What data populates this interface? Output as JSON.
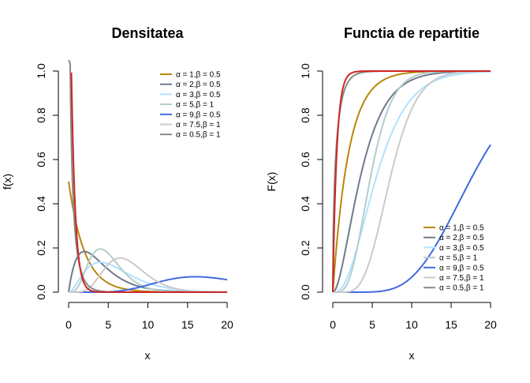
{
  "chart_data": [
    {
      "type": "line",
      "title": "Densitatea",
      "xlabel": "x",
      "ylabel": "f(x)",
      "xlim": [
        0,
        20
      ],
      "ylim": [
        0,
        1.0
      ],
      "xticks": [
        "0",
        "5",
        "10",
        "15",
        "20"
      ],
      "yticks": [
        "0.0",
        "0.2",
        "0.4",
        "0.6",
        "0.8",
        "1.0"
      ],
      "function": "gamma density",
      "legend_position": "top-right",
      "legend_box": false,
      "grid": false,
      "series": [
        {
          "name": "α = 1,β = 0.5",
          "alpha": 1,
          "beta": 0.5,
          "color": "#B8860B"
        },
        {
          "name": "α = 2,β = 0.5",
          "alpha": 2,
          "beta": 0.5,
          "color": "#6E7B8B"
        },
        {
          "name": "α = 3,β = 0.5",
          "alpha": 3,
          "beta": 0.5,
          "color": "#B0E2FF"
        },
        {
          "name": "α = 5,β = 1",
          "alpha": 5,
          "beta": 1,
          "color": "#B4CDCD"
        },
        {
          "name": "α = 9,β = 0.5",
          "alpha": 9,
          "beta": 0.5,
          "color": "#4169E1"
        },
        {
          "name": "α = 7.5,β = 1",
          "alpha": 7.5,
          "beta": 1,
          "color": "#CDC9C9"
        },
        {
          "name": "α = 0.5,β = 1",
          "alpha": 0.5,
          "beta": 1,
          "color": "#838B83"
        },
        {
          "name": "",
          "alpha": 1,
          "beta": 2,
          "color": "#CD2626",
          "in_legend": false
        }
      ]
    },
    {
      "type": "line",
      "title": "Functia de repartitie",
      "xlabel": "x",
      "ylabel": "F(x)",
      "xlim": [
        0,
        20
      ],
      "ylim": [
        0,
        1.0
      ],
      "xticks": [
        "0",
        "5",
        "10",
        "15",
        "20"
      ],
      "yticks": [
        "0.0",
        "0.2",
        "0.4",
        "0.6",
        "0.8",
        "1.0"
      ],
      "function": "gamma cumulative distribution",
      "legend_position": "bottom-right",
      "legend_box": false,
      "grid": false,
      "series": [
        {
          "name": "α = 1,β = 0.5",
          "alpha": 1,
          "beta": 0.5,
          "color": "#B8860B"
        },
        {
          "name": "α = 2,β = 0.5",
          "alpha": 2,
          "beta": 0.5,
          "color": "#6E7B8B"
        },
        {
          "name": "α = 3,β = 0.5",
          "alpha": 3,
          "beta": 0.5,
          "color": "#B0E2FF"
        },
        {
          "name": "α = 5,β = 1",
          "alpha": 5,
          "beta": 1,
          "color": "#B4CDCD"
        },
        {
          "name": "α = 9,β = 0.5",
          "alpha": 9,
          "beta": 0.5,
          "color": "#4169E1"
        },
        {
          "name": "α = 7.5,β = 1",
          "alpha": 7.5,
          "beta": 1,
          "color": "#CDC9C9"
        },
        {
          "name": "α = 0.5,β = 1",
          "alpha": 0.5,
          "beta": 1,
          "color": "#838B83"
        },
        {
          "name": "",
          "alpha": 1,
          "beta": 2,
          "color": "#CD2626",
          "in_legend": false
        }
      ]
    }
  ]
}
